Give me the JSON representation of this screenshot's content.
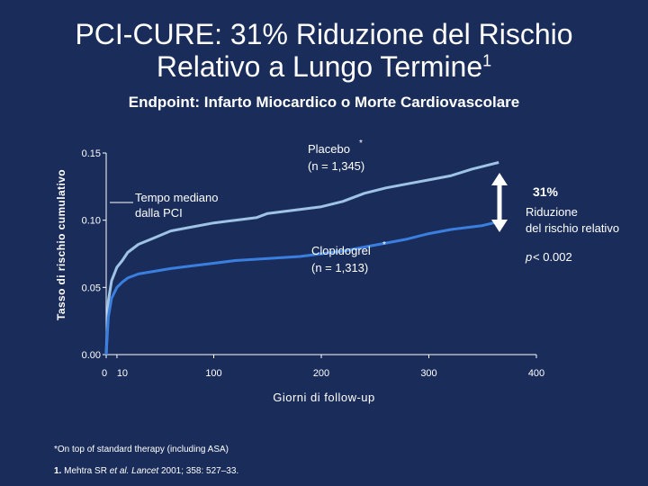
{
  "slide": {
    "title_line1": "PCI-CURE: 31% Riduzione del Rischio",
    "title_line2": "Relativo a Lungo Termine",
    "title_sup": "1",
    "subtitle": "Endpoint: Infarto Miocardico o  Morte Cardiovascolare"
  },
  "chart_data": {
    "type": "line",
    "xlabel": "Giorni di follow-up",
    "ylabel": "Tasso di rischio cumulativo",
    "xlim": [
      0,
      400
    ],
    "ylim": [
      0.0,
      0.15
    ],
    "x_ticks": [
      0,
      10,
      100,
      200,
      300,
      400
    ],
    "x_tick_labels": [
      "0",
      "10",
      "100",
      "200",
      "300",
      "400"
    ],
    "y_ticks": [
      0.0,
      0.05,
      0.1,
      0.15
    ],
    "y_tick_labels": [
      "0.00",
      "0.05",
      "0.10",
      "0.15"
    ],
    "grid": false,
    "series": [
      {
        "name": "Placebo",
        "label_line1": "Placebo",
        "label_line2": "(n = 1,345)",
        "color": "#9ec3e6",
        "x": [
          0,
          2,
          5,
          10,
          15,
          20,
          30,
          45,
          60,
          80,
          100,
          120,
          140,
          150,
          160,
          170,
          180,
          200,
          220,
          240,
          260,
          280,
          300,
          320,
          340,
          350,
          355,
          360,
          365
        ],
        "y": [
          0.0,
          0.04,
          0.055,
          0.065,
          0.07,
          0.076,
          0.082,
          0.087,
          0.092,
          0.095,
          0.098,
          0.1,
          0.102,
          0.105,
          0.106,
          0.107,
          0.108,
          0.11,
          0.114,
          0.12,
          0.124,
          0.127,
          0.13,
          0.133,
          0.138,
          0.14,
          0.141,
          0.142,
          0.143
        ]
      },
      {
        "name": "Clopidogrel",
        "label_line1": "Clopidogrel",
        "label_line2": "(n = 1,313)",
        "color": "#3a7fe0",
        "x": [
          0,
          2,
          5,
          10,
          15,
          20,
          30,
          45,
          60,
          80,
          100,
          120,
          140,
          160,
          180,
          200,
          220,
          240,
          260,
          280,
          300,
          320,
          340,
          350,
          360,
          365
        ],
        "y": [
          0.0,
          0.028,
          0.042,
          0.05,
          0.054,
          0.057,
          0.06,
          0.062,
          0.064,
          0.066,
          0.068,
          0.07,
          0.071,
          0.072,
          0.073,
          0.075,
          0.077,
          0.08,
          0.083,
          0.086,
          0.09,
          0.093,
          0.095,
          0.096,
          0.098,
          0.098
        ]
      }
    ],
    "annotations": {
      "median_line1": "Tempo mediano",
      "median_line2": "dalla PCI",
      "rrr_value": "31%",
      "rrr_line1": "Riduzione",
      "rrr_line2": "del rischio relativo",
      "p_label": "p",
      "p_value": " < 0.002",
      "asterisk": "*"
    },
    "arrow_color": "#ffffff"
  },
  "footnotes": {
    "note": "*On top of standard therapy (including ASA)",
    "ref_num": "1.",
    "ref_text_a": " Mehtra SR ",
    "ref_italic": "et al. Lancet",
    "ref_text_b": " 2001; 358: 527–33."
  }
}
